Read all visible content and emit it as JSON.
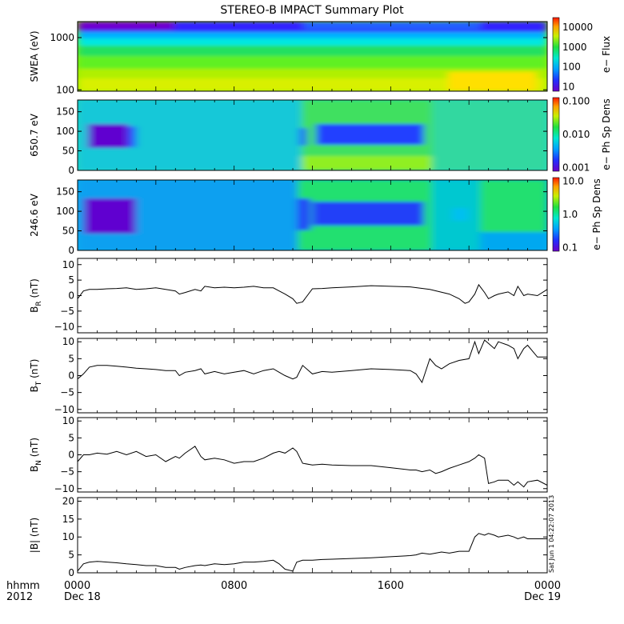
{
  "page": {
    "title": "STEREO-B IMPACT Summary Plot",
    "stamp": "Sat Jun 1 04:22:07 2013",
    "time_axis": {
      "unit_label": "hhmm",
      "year_label": "2012",
      "ticks": [
        {
          "hour": 0,
          "time": "0000",
          "date": "Dec 18"
        },
        {
          "hour": 8,
          "time": "0800",
          "date": ""
        },
        {
          "hour": 16,
          "time": "1600",
          "date": ""
        },
        {
          "hour": 24,
          "time": "0000",
          "date": "Dec 19"
        }
      ],
      "range_hours": [
        0,
        24
      ]
    }
  },
  "chart_data": [
    {
      "type": "heatmap",
      "ylabel": "SWEA (eV)",
      "yscale": "log",
      "ylim": [
        100,
        1700
      ],
      "yticks": [
        "1000",
        "100"
      ],
      "colorbar": {
        "label": "e− Flux",
        "scale": "log",
        "range": [
          5,
          20000
        ],
        "ticks": [
          "10000",
          "1000",
          "100",
          "10"
        ]
      }
    },
    {
      "type": "heatmap",
      "ylabel": "650.7 eV",
      "ylim": [
        0,
        180
      ],
      "yticks": [
        "150",
        "100",
        "50",
        "0"
      ],
      "colorbar": {
        "label": "e− Ph Sp Dens",
        "scale": "log",
        "range": [
          0.001,
          0.1
        ],
        "ticks": [
          "0.100",
          "0.010",
          "0.001"
        ]
      }
    },
    {
      "type": "heatmap",
      "ylabel": "246.6 eV",
      "ylim": [
        0,
        180
      ],
      "yticks": [
        "150",
        "100",
        "50",
        "0"
      ],
      "colorbar": {
        "label": "e− Ph Sp Dens",
        "scale": "log",
        "range": [
          0.1,
          10
        ],
        "ticks": [
          "10.0",
          "1.0",
          "0.1"
        ]
      }
    },
    {
      "type": "line",
      "ylabel": "B_R (nT)",
      "ylabel_main": "B",
      "ylabel_sub": "R",
      "ylabel_unit": "(nT)",
      "ylim": [
        -12,
        12
      ],
      "yticks": [
        "10",
        "5",
        "0",
        "−5",
        "−10"
      ],
      "x": [
        0,
        0.3,
        0.6,
        1,
        1.5,
        2,
        2.5,
        3,
        3.5,
        4,
        4.5,
        5,
        5.2,
        5.5,
        6,
        6.3,
        6.5,
        7,
        7.5,
        8,
        8.5,
        9,
        9.5,
        10,
        10.3,
        10.6,
        11,
        11.2,
        11.5,
        12,
        12.5,
        13,
        14,
        15,
        16,
        17,
        18,
        19,
        19.5,
        19.8,
        20,
        20.3,
        20.5,
        20.8,
        21,
        21.3,
        21.5,
        22,
        22.3,
        22.5,
        22.8,
        23,
        23.5,
        24
      ],
      "y": [
        -1,
        1.5,
        2,
        2,
        2.2,
        2.3,
        2.5,
        2,
        2.2,
        2.5,
        2,
        1.5,
        0.5,
        1,
        2,
        1.5,
        3,
        2.5,
        2.7,
        2.5,
        2.7,
        3,
        2.5,
        2.5,
        1.5,
        0.5,
        -1,
        -2.5,
        -2,
        2.2,
        2.3,
        2.5,
        2.8,
        3.2,
        3,
        2.8,
        2,
        0.5,
        -1,
        -2.5,
        -2,
        0.5,
        3.5,
        1,
        -1,
        0,
        0.5,
        1.2,
        0,
        3,
        0,
        0.5,
        0,
        2
      ]
    },
    {
      "type": "line",
      "ylabel": "B_T (nT)",
      "ylabel_main": "B",
      "ylabel_sub": "T",
      "ylabel_unit": "(nT)",
      "ylim": [
        -11,
        11
      ],
      "yticks": [
        "10",
        "5",
        "0",
        "−5",
        "−10"
      ],
      "x": [
        0,
        0.3,
        0.6,
        1,
        1.5,
        2,
        2.5,
        3,
        3.5,
        4,
        4.5,
        5,
        5.2,
        5.5,
        6,
        6.3,
        6.5,
        7,
        7.5,
        8,
        8.5,
        9,
        9.5,
        10,
        10.3,
        10.6,
        11,
        11.2,
        11.5,
        12,
        12.5,
        13,
        14,
        15,
        16,
        17,
        17.3,
        17.6,
        18,
        18.3,
        18.6,
        19,
        19.5,
        20,
        20.3,
        20.5,
        20.8,
        21,
        21.3,
        21.5,
        22,
        22.3,
        22.5,
        22.8,
        23,
        23.5,
        24
      ],
      "y": [
        -1,
        0.5,
        2.5,
        3,
        3,
        2.8,
        2.5,
        2.2,
        2,
        1.8,
        1.5,
        1.5,
        0,
        1,
        1.5,
        2,
        0.5,
        1.2,
        0.5,
        1,
        1.5,
        0.5,
        1.5,
        2,
        1,
        0,
        -1,
        -0.5,
        3,
        0.5,
        1.2,
        1,
        1.5,
        2,
        1.8,
        1.5,
        0.5,
        -2,
        5,
        3,
        2,
        3.5,
        4.5,
        5,
        10,
        6.5,
        10.5,
        9.5,
        8,
        10,
        9,
        8,
        5,
        8,
        9,
        5.5,
        5.5
      ]
    },
    {
      "type": "line",
      "ylabel": "B_N (nT)",
      "ylabel_main": "B",
      "ylabel_sub": "N",
      "ylabel_unit": "(nT)",
      "ylim": [
        -11,
        11
      ],
      "yticks": [
        "10",
        "5",
        "0",
        "−5",
        "−10"
      ],
      "x": [
        0,
        0.3,
        0.6,
        1,
        1.5,
        2,
        2.5,
        3,
        3.5,
        4,
        4.5,
        5,
        5.2,
        5.5,
        6,
        6.3,
        6.5,
        7,
        7.5,
        8,
        8.5,
        9,
        9.5,
        10,
        10.3,
        10.6,
        11,
        11.2,
        11.5,
        12,
        12.5,
        13,
        14,
        15,
        16,
        17,
        17.3,
        17.6,
        18,
        18.3,
        18.6,
        19,
        19.5,
        20,
        20.3,
        20.5,
        20.8,
        21,
        21.3,
        21.5,
        22,
        22.3,
        22.5,
        22.8,
        23,
        23.5,
        24
      ],
      "y": [
        -2,
        0,
        0,
        0.5,
        0.2,
        1,
        0,
        1,
        -0.5,
        0,
        -2,
        -0.5,
        -1,
        0.5,
        2.5,
        -0.5,
        -1.5,
        -1,
        -1.5,
        -2.5,
        -2,
        -2,
        -1,
        0.5,
        1,
        0.5,
        2,
        1,
        -2.5,
        -3,
        -2.8,
        -3,
        -3.2,
        -3.2,
        -3.8,
        -4.5,
        -4.5,
        -5,
        -4.5,
        -5.5,
        -5,
        -4,
        -3,
        -2,
        -1,
        0,
        -1,
        -8.5,
        -8,
        -7.5,
        -7.5,
        -9,
        -8,
        -9.5,
        -8,
        -7.5,
        -9
      ]
    },
    {
      "type": "line",
      "ylabel": "|B| (nT)",
      "ylabel_main": "|B|",
      "ylabel_sub": "",
      "ylabel_unit": "(nT)",
      "ylim": [
        0,
        21
      ],
      "yticks": [
        "20",
        "15",
        "10",
        "5",
        "0"
      ],
      "x": [
        0,
        0.3,
        0.6,
        1,
        1.5,
        2,
        2.5,
        3,
        3.5,
        4,
        4.5,
        5,
        5.2,
        5.5,
        6,
        6.3,
        6.5,
        7,
        7.5,
        8,
        8.5,
        9,
        9.5,
        10,
        10.3,
        10.6,
        11,
        11.2,
        11.5,
        12,
        12.5,
        13,
        14,
        15,
        16,
        17,
        17.3,
        17.6,
        18,
        18.3,
        18.6,
        19,
        19.5,
        20,
        20.3,
        20.5,
        20.8,
        21,
        21.3,
        21.5,
        22,
        22.3,
        22.5,
        22.8,
        23,
        23.5,
        24
      ],
      "y": [
        0.5,
        2.5,
        3,
        3.2,
        3,
        2.8,
        2.5,
        2.3,
        2,
        2,
        1.5,
        1.5,
        1,
        1.5,
        2,
        2.2,
        2,
        2.5,
        2.3,
        2.5,
        3,
        3,
        3.2,
        3.5,
        2.5,
        1,
        0.5,
        3,
        3.5,
        3.5,
        3.7,
        3.8,
        4,
        4.2,
        4.5,
        4.8,
        5,
        5.5,
        5.2,
        5.5,
        5.8,
        5.5,
        6,
        6,
        10,
        11,
        10.5,
        11,
        10.5,
        10,
        10.5,
        10,
        9.5,
        10,
        9.5,
        9.5,
        9.5
      ]
    }
  ]
}
